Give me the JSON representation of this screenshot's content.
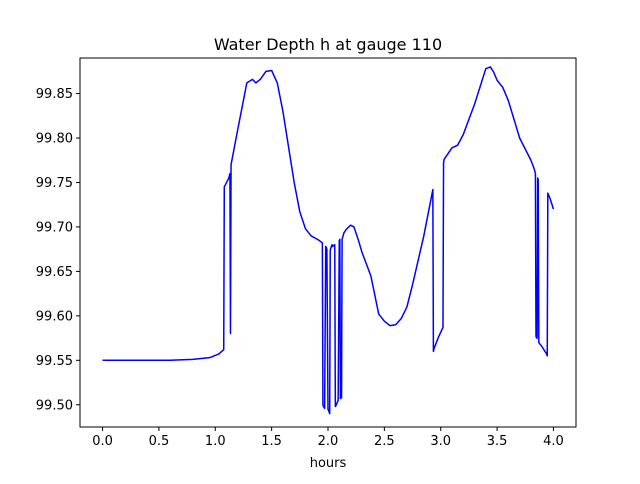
{
  "chart_data": {
    "type": "line",
    "title": "Water Depth h at gauge 110",
    "xlabel": "hours",
    "ylabel": "",
    "xlim": [
      -0.2,
      4.2
    ],
    "ylim": [
      99.475,
      99.89
    ],
    "xticks": [
      0.0,
      0.5,
      1.0,
      1.5,
      2.0,
      2.5,
      3.0,
      3.5,
      4.0
    ],
    "xtick_labels": [
      "0.0",
      "0.5",
      "1.0",
      "1.5",
      "2.0",
      "2.5",
      "3.0",
      "3.5",
      "4.0"
    ],
    "yticks": [
      99.5,
      99.55,
      99.6,
      99.65,
      99.7,
      99.75,
      99.8,
      99.85
    ],
    "ytick_labels": [
      "99.50",
      "99.55",
      "99.60",
      "99.65",
      "99.70",
      "99.75",
      "99.80",
      "99.85"
    ],
    "grid": false,
    "line_color": "#0000ff",
    "series": [
      {
        "x": [
          0.0,
          0.3,
          0.6,
          0.8,
          0.95,
          1.03,
          1.075,
          1.08,
          1.12,
          1.13,
          1.135,
          1.14,
          1.2,
          1.28,
          1.33,
          1.36,
          1.4,
          1.45,
          1.5,
          1.55,
          1.6,
          1.65,
          1.7,
          1.75,
          1.8,
          1.85,
          1.92,
          1.95,
          1.955,
          1.96,
          1.97,
          1.98,
          1.985,
          1.99,
          2.0,
          2.01,
          2.015,
          2.02,
          2.025,
          2.03,
          2.035,
          2.04,
          2.06,
          2.065,
          2.07,
          2.09,
          2.1,
          2.105,
          2.11,
          2.12,
          2.125,
          2.13,
          2.14,
          2.16,
          2.2,
          2.23,
          2.27,
          2.3,
          2.38,
          2.45,
          2.5,
          2.55,
          2.6,
          2.65,
          2.7,
          2.75,
          2.85,
          2.93,
          2.935,
          2.94,
          2.98,
          3.02,
          3.025,
          3.03,
          3.1,
          3.15,
          3.2,
          3.3,
          3.4,
          3.44,
          3.47,
          3.5,
          3.55,
          3.6,
          3.7,
          3.8,
          3.83,
          3.84,
          3.845,
          3.85,
          3.855,
          3.86,
          3.865,
          3.87,
          3.9,
          3.94,
          3.945,
          3.95,
          3.97,
          4.0
        ],
        "y": [
          99.55,
          99.55,
          99.55,
          99.551,
          99.553,
          99.557,
          99.562,
          99.745,
          99.755,
          99.76,
          99.58,
          99.77,
          99.81,
          99.862,
          99.866,
          99.862,
          99.866,
          99.875,
          99.876,
          99.862,
          99.83,
          99.79,
          99.75,
          99.717,
          99.698,
          99.69,
          99.685,
          99.682,
          99.5,
          99.498,
          99.496,
          99.678,
          99.677,
          99.675,
          99.495,
          99.492,
          99.49,
          99.674,
          99.676,
          99.678,
          99.68,
          99.678,
          99.68,
          99.498,
          99.499,
          99.505,
          99.685,
          99.686,
          99.507,
          99.508,
          99.687,
          99.688,
          99.693,
          99.697,
          99.702,
          99.7,
          99.685,
          99.672,
          99.645,
          99.602,
          99.594,
          99.589,
          99.59,
          99.597,
          99.61,
          99.635,
          99.69,
          99.742,
          99.56,
          99.563,
          99.576,
          99.587,
          99.772,
          99.776,
          99.789,
          99.792,
          99.804,
          99.838,
          99.878,
          99.88,
          99.874,
          99.865,
          99.857,
          99.842,
          99.8,
          99.775,
          99.765,
          99.76,
          99.577,
          99.575,
          99.575,
          99.755,
          99.753,
          99.57,
          99.565,
          99.557,
          99.555,
          99.738,
          99.732,
          99.72
        ]
      }
    ]
  }
}
